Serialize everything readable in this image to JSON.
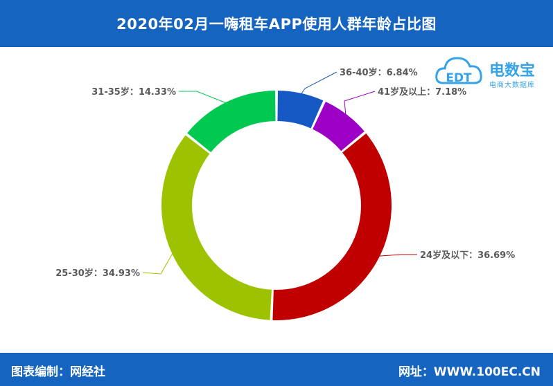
{
  "header": {
    "title": "2020年02月一嗨租车APP使用人群年龄占比图"
  },
  "footer": {
    "source": "图表编制：网经社",
    "url": "网址：WWW.100EC.CN"
  },
  "logo": {
    "name": "电数宝",
    "subtitle": "电商大数据库",
    "mark": "EDT",
    "color": "#35a3e8"
  },
  "chart_data": {
    "type": "pie",
    "style": "donut",
    "start": "top",
    "direction": "clockwise",
    "slices": [
      {
        "label": "36-40岁：6.84%",
        "value": 6.84,
        "color": "#1658c4"
      },
      {
        "label": "41岁及以上：7.18%",
        "value": 7.18,
        "color": "#9c00c4"
      },
      {
        "label": "24岁及以下：36.69%",
        "value": 36.69,
        "color": "#c00000"
      },
      {
        "label": "25-30岁：34.93%",
        "value": 34.93,
        "color": "#9dc300"
      },
      {
        "label": "31-35岁：14.33%",
        "value": 14.33,
        "color": "#00c851"
      }
    ]
  }
}
